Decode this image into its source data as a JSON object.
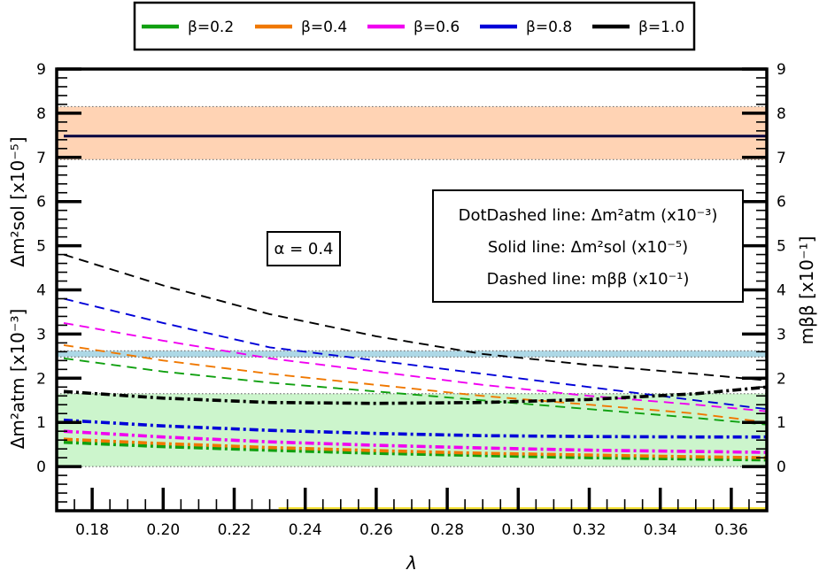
{
  "chart_data": {
    "type": "line",
    "xlabel": "λ",
    "ylabel_left_top": "Δm²sol [x10⁻⁵]",
    "ylabel_left_bottom": "Δm²atm [x10⁻³]",
    "ylabel_right": "mββ [x10⁻¹]",
    "xlim": [
      0.17,
      0.37
    ],
    "ylim": [
      -1,
      9
    ],
    "x_ticks": [
      0.18,
      0.2,
      0.22,
      0.24,
      0.26,
      0.28,
      0.3,
      0.32,
      0.34,
      0.36
    ],
    "x_tick_labels": [
      "0.18",
      "0.20",
      "0.22",
      "0.24",
      "0.26",
      "0.28",
      "0.30",
      "0.32",
      "0.34",
      "0.36"
    ],
    "y_ticks": [
      0,
      1,
      2,
      3,
      4,
      5,
      6,
      7,
      8,
      9
    ],
    "y_tick_labels": [
      "0",
      "1",
      "2",
      "3",
      "4",
      "5",
      "6",
      "7",
      "8",
      "9"
    ],
    "bands": [
      {
        "name": "solar-band",
        "ymin": 6.95,
        "ymax": 8.15,
        "color": "#ffd3b4"
      },
      {
        "name": "mbb-band",
        "ymin": 2.48,
        "ymax": 2.62,
        "color": "#add8e6"
      },
      {
        "name": "atm-band",
        "ymin": 0.0,
        "ymax": 1.65,
        "color": "#ccf5cc"
      }
    ],
    "lambda_band": {
      "name": "lambda-allowed-band",
      "xmin": 0.2325,
      "xmax": 0.37,
      "color": "#f7e43a"
    },
    "legend": {
      "placement": "top",
      "entries": [
        {
          "label": "β=0.2",
          "color": "#10a010"
        },
        {
          "label": "β=0.4",
          "color": "#f07800"
        },
        {
          "label": "β=0.6",
          "color": "#f000f0"
        },
        {
          "label": "β=0.8",
          "color": "#0000d8"
        },
        {
          "label": "β=1.0",
          "color": "#000000"
        }
      ]
    },
    "alpha_label": "α = 0.4",
    "info_box": {
      "line1": "DotDashed line: Δm²atm (x10⁻³)",
      "line2": "Solid line: Δm²sol (x10⁻⁵)",
      "line3": "Dashed line: mββ (x10⁻¹)"
    },
    "x": [
      0.172,
      0.2,
      0.23,
      0.26,
      0.29,
      0.32,
      0.35,
      0.37
    ],
    "series": [
      {
        "name": "β=0.2 mββ",
        "style": "dashed",
        "color": "#10a010",
        "values": [
          2.45,
          2.15,
          1.9,
          1.7,
          1.5,
          1.3,
          1.1,
          0.95
        ]
      },
      {
        "name": "β=0.4 mββ",
        "style": "dashed",
        "color": "#f07800",
        "values": [
          2.75,
          2.4,
          2.1,
          1.85,
          1.6,
          1.4,
          1.2,
          1.0
        ]
      },
      {
        "name": "β=0.6 mββ",
        "style": "dashed",
        "color": "#f000f0",
        "values": [
          3.25,
          2.85,
          2.45,
          2.15,
          1.85,
          1.6,
          1.4,
          1.25
        ]
      },
      {
        "name": "β=0.8 mββ",
        "style": "dashed",
        "color": "#0000d8",
        "values": [
          3.8,
          3.25,
          2.7,
          2.4,
          2.1,
          1.8,
          1.5,
          1.3
        ]
      },
      {
        "name": "β=1.0 mββ",
        "style": "dashed",
        "color": "#000000",
        "values": [
          4.8,
          4.1,
          3.45,
          2.95,
          2.55,
          2.3,
          2.1,
          1.95
        ]
      },
      {
        "name": "β=0.2 Δm²atm",
        "style": "dotdash",
        "color": "#10a010",
        "values": [
          0.55,
          0.45,
          0.37,
          0.3,
          0.25,
          0.2,
          0.17,
          0.15
        ]
      },
      {
        "name": "β=0.4 Δm²atm",
        "style": "dotdash",
        "color": "#f07800",
        "values": [
          0.62,
          0.52,
          0.43,
          0.36,
          0.3,
          0.26,
          0.22,
          0.2
        ]
      },
      {
        "name": "β=0.6 Δm²atm",
        "style": "dotdash",
        "color": "#f000f0",
        "values": [
          0.8,
          0.67,
          0.56,
          0.48,
          0.42,
          0.37,
          0.34,
          0.32
        ]
      },
      {
        "name": "β=0.8 Δm²atm",
        "style": "dotdash",
        "color": "#0000d8",
        "values": [
          1.05,
          0.92,
          0.82,
          0.75,
          0.7,
          0.68,
          0.67,
          0.67
        ]
      },
      {
        "name": "β=1.0 Δm²atm",
        "style": "dotdash",
        "color": "#000000",
        "values": [
          1.7,
          1.55,
          1.45,
          1.43,
          1.45,
          1.52,
          1.65,
          1.8
        ]
      },
      {
        "name": "all β Δm²sol",
        "style": "solid",
        "color": "#000040",
        "values": [
          7.48,
          7.48,
          7.48,
          7.48,
          7.48,
          7.48,
          7.48,
          7.48
        ]
      }
    ]
  }
}
